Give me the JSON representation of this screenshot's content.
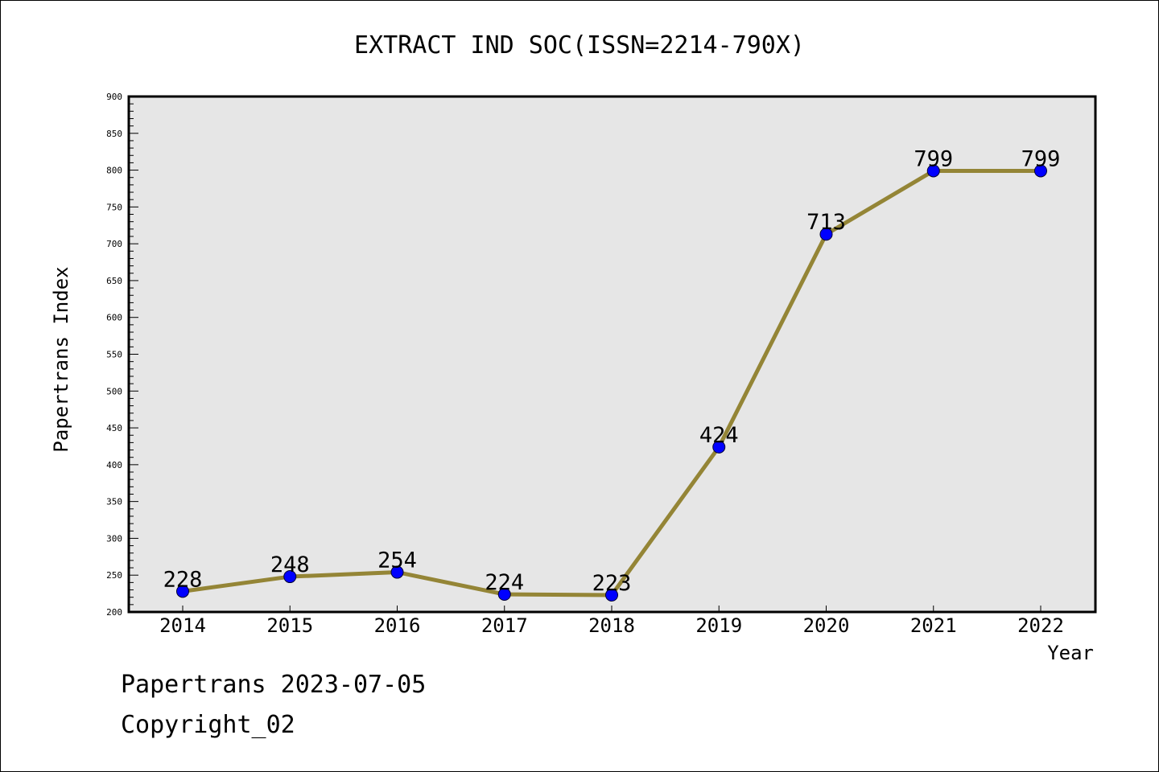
{
  "chart_data": {
    "type": "line",
    "title": "EXTRACT IND SOC(ISSN=2214-790X)",
    "xlabel": "Year",
    "ylabel": "Papertrans Index",
    "categories": [
      "2014",
      "2015",
      "2016",
      "2017",
      "2018",
      "2019",
      "2020",
      "2021",
      "2022"
    ],
    "series": [
      {
        "values": [
          228,
          248,
          254,
          224,
          223,
          424,
          713,
          799,
          799
        ]
      }
    ],
    "ylim": [
      200,
      900
    ],
    "yticks": [
      "200",
      "250",
      "300",
      "350",
      "400",
      "450",
      "500",
      "550",
      "600",
      "650",
      "700",
      "750",
      "800",
      "850",
      "900"
    ],
    "grid": false,
    "colors": {
      "line": "#948536",
      "marker": "#0000ff",
      "plot_background": "#e6e6e6"
    }
  },
  "footer": {
    "date_line": "Papertrans 2023-07-05",
    "copyright": "Copyright_02"
  }
}
